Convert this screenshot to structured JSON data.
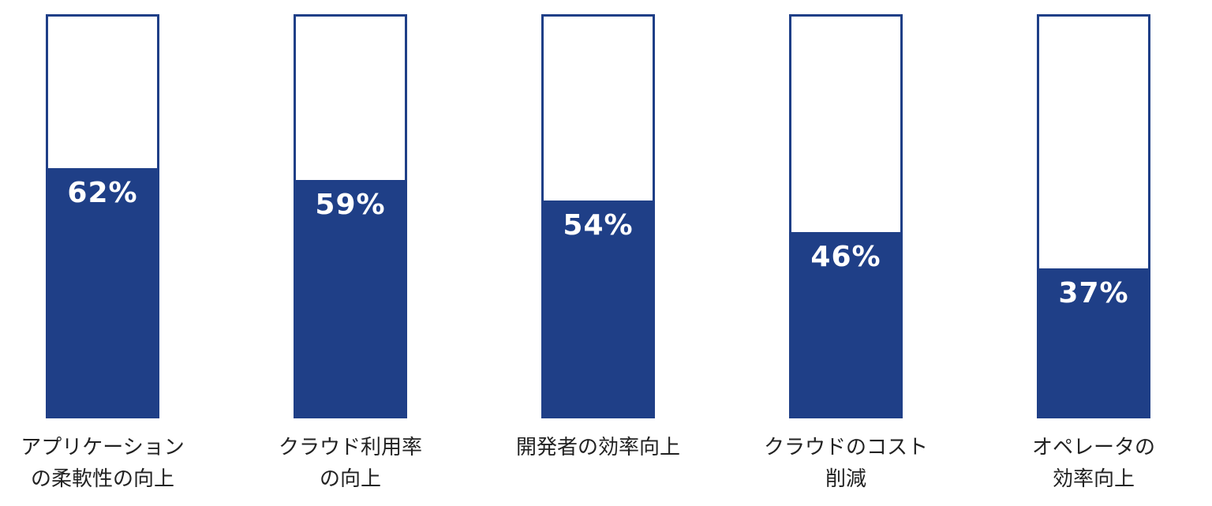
{
  "chart_data": {
    "type": "bar",
    "categories": [
      "アプリケーション\nの柔軟性の向上",
      "クラウド利用率\nの向上",
      "開発者の効率向上",
      "クラウドのコスト\n削減",
      "オペレータの\n効率向上"
    ],
    "values": [
      62,
      59,
      54,
      46,
      37
    ],
    "value_labels": [
      "62%",
      "59%",
      "54%",
      "46%",
      "37%"
    ],
    "unit": "%",
    "ylim": [
      0,
      100
    ],
    "grid": false,
    "legend": "none",
    "colors": {
      "fill": "#1f3f87",
      "border": "#1f3f87",
      "empty": "#ffffff",
      "value_text": "#ffffff",
      "label_text": "#222222"
    }
  }
}
